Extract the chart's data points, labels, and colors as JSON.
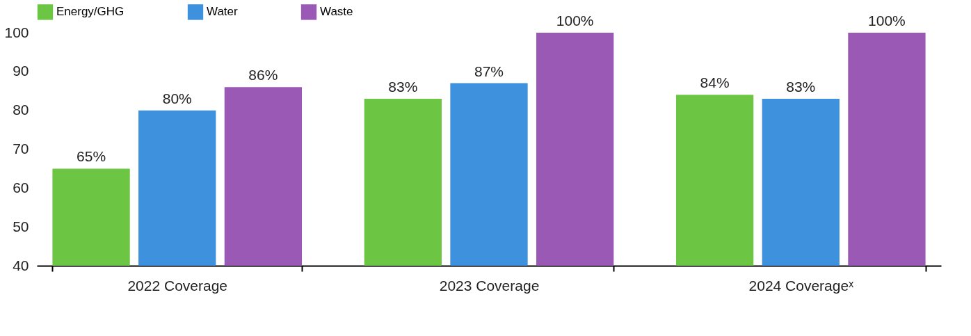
{
  "chart_data": {
    "type": "bar",
    "categories": [
      "2022 Coverage",
      "2023 Coverage",
      "2024 Coverageˣ"
    ],
    "series": [
      {
        "name": "Energy/GHG",
        "color": "#6cc644",
        "values": [
          65,
          83,
          84
        ],
        "value_labels": [
          "65%",
          "83%",
          "84%"
        ]
      },
      {
        "name": "Water",
        "color": "#3d91dd",
        "values": [
          80,
          87,
          83
        ],
        "value_labels": [
          "80%",
          "87%",
          "83%"
        ]
      },
      {
        "name": "Waste",
        "color": "#9b59b6",
        "values": [
          86,
          100,
          100
        ],
        "value_labels": [
          "86%",
          "100%",
          "100%"
        ]
      }
    ],
    "ylim": [
      40,
      100
    ],
    "yticks": [
      40,
      50,
      60,
      70,
      80,
      90,
      100
    ],
    "grid": false,
    "legend": "top"
  }
}
